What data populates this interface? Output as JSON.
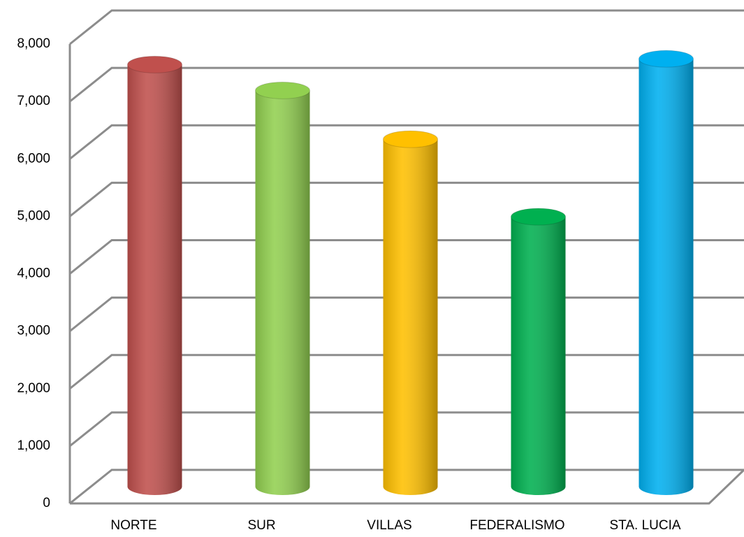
{
  "chart_data": {
    "type": "cylinder",
    "categories": [
      "NORTE",
      "SUR",
      "VILLAS",
      "FEDERALISMO",
      "STA. LUCIA"
    ],
    "values": [
      7350,
      6900,
      6050,
      4700,
      7450
    ],
    "colors": [
      "#c0504d",
      "#92d050",
      "#ffc000",
      "#00b050",
      "#00b0f0"
    ],
    "ylim": [
      0,
      8000
    ],
    "yticks": [
      0,
      {
        "value": 1000,
        "label": "1,000"
      },
      {
        "value": 2000,
        "label": "2,000"
      },
      {
        "value": 3000,
        "label": "3,000"
      },
      {
        "value": 4000,
        "label": "4,000"
      },
      {
        "value": 5000,
        "label": "5,000"
      },
      {
        "value": 6000,
        "label": "6,000"
      },
      {
        "value": 7000,
        "label": "7,000"
      },
      {
        "value": 8000,
        "label": "8,000"
      }
    ],
    "grid": true
  }
}
